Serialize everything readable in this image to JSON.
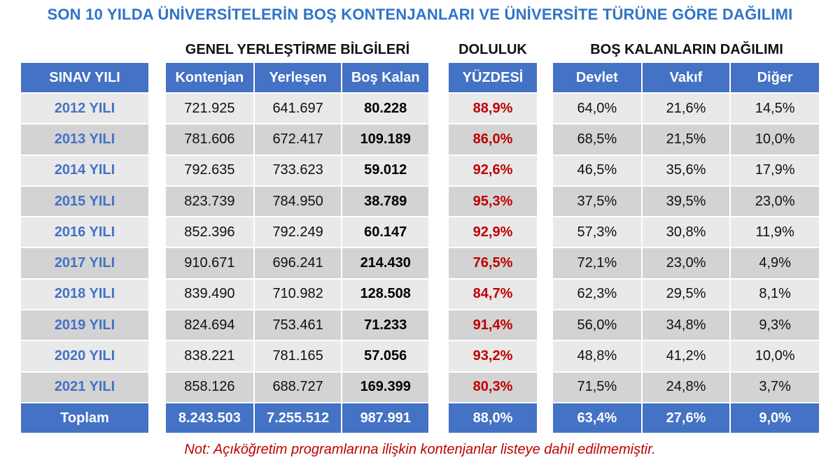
{
  "title": "SON 10 YILDA ÜNİVERSİTELERİN BOŞ KONTENJANLARI VE ÜNİVERSİTE TÜRÜNE GÖRE DAĞILIMI",
  "group_headers": {
    "general": "GENEL YERLEŞTİRME BİLGİLERİ",
    "occupancy": "DOLULUK",
    "distribution": "BOŞ KALANLARIN DAĞILIMI"
  },
  "columns": {
    "year": "SINAV YILI",
    "quota": "Kontenjan",
    "placed": "Yerleşen",
    "empty": "Boş Kalan",
    "rate": "YÜZDESİ",
    "state": "Devlet",
    "foundation": "Vakıf",
    "other": "Diğer"
  },
  "chart_data": {
    "type": "table",
    "title": "SON 10 YILDA ÜNİVERSİTELERİN BOŞ KONTENJANLARI VE ÜNİVERSİTE TÜRÜNE GÖRE DAĞILIMI",
    "rows": [
      {
        "year": "2012 YILI",
        "quota": "721.925",
        "placed": "641.697",
        "empty": "80.228",
        "rate": "88,9%",
        "state": "64,0%",
        "foundation": "21,6%",
        "other": "14,5%"
      },
      {
        "year": "2013 YILI",
        "quota": "781.606",
        "placed": "672.417",
        "empty": "109.189",
        "rate": "86,0%",
        "state": "68,5%",
        "foundation": "21,5%",
        "other": "10,0%"
      },
      {
        "year": "2014 YILI",
        "quota": "792.635",
        "placed": "733.623",
        "empty": "59.012",
        "rate": "92,6%",
        "state": "46,5%",
        "foundation": "35,6%",
        "other": "17,9%"
      },
      {
        "year": "2015 YILI",
        "quota": "823.739",
        "placed": "784.950",
        "empty": "38.789",
        "rate": "95,3%",
        "state": "37,5%",
        "foundation": "39,5%",
        "other": "23,0%"
      },
      {
        "year": "2016 YILI",
        "quota": "852.396",
        "placed": "792.249",
        "empty": "60.147",
        "rate": "92,9%",
        "state": "57,3%",
        "foundation": "30,8%",
        "other": "11,9%"
      },
      {
        "year": "2017 YILI",
        "quota": "910.671",
        "placed": "696.241",
        "empty": "214.430",
        "rate": "76,5%",
        "state": "72,1%",
        "foundation": "23,0%",
        "other": "4,9%"
      },
      {
        "year": "2018 YILI",
        "quota": "839.490",
        "placed": "710.982",
        "empty": "128.508",
        "rate": "84,7%",
        "state": "62,3%",
        "foundation": "29,5%",
        "other": "8,1%"
      },
      {
        "year": "2019 YILI",
        "quota": "824.694",
        "placed": "753.461",
        "empty": "71.233",
        "rate": "91,4%",
        "state": "56,0%",
        "foundation": "34,8%",
        "other": "9,3%"
      },
      {
        "year": "2020 YILI",
        "quota": "838.221",
        "placed": "781.165",
        "empty": "57.056",
        "rate": "93,2%",
        "state": "48,8%",
        "foundation": "41,2%",
        "other": "10,0%"
      },
      {
        "year": "2021 YILI",
        "quota": "858.126",
        "placed": "688.727",
        "empty": "169.399",
        "rate": "80,3%",
        "state": "71,5%",
        "foundation": "24,8%",
        "other": "3,7%"
      }
    ],
    "total": {
      "year": "Toplam",
      "quota": "8.243.503",
      "placed": "7.255.512",
      "empty": "987.991",
      "rate": "88,0%",
      "state": "63,4%",
      "foundation": "27,6%",
      "other": "9,0%"
    }
  },
  "note": "Not: Açıköğretim programlarına ilişkin kontenjanlar listeye dahil edilmemiştir.",
  "colors": {
    "header_blue": "#4472c4",
    "title_blue": "#2e74c8",
    "rate_red": "#c00000",
    "row_light": "#e9e9e9",
    "row_dark": "#d3d3d3"
  }
}
